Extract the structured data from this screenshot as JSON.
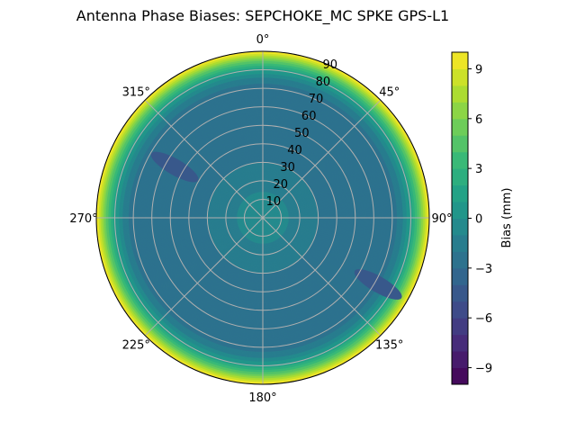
{
  "chart_data": {
    "type": "polar-contour",
    "title": "Antenna Phase Biases: SEPCHOKE_MC     SPKE GPS-L1",
    "angular_ticks": [
      "0°",
      "45°",
      "90°",
      "135°",
      "180°",
      "225°",
      "270°",
      "315°"
    ],
    "radial_ticks": [
      "10",
      "20",
      "30",
      "40",
      "50",
      "60",
      "70",
      "80",
      "90"
    ],
    "radial_range": [
      0,
      90
    ],
    "grid": true,
    "colormap": "viridis",
    "colorbar": {
      "label": "Bias (mm)",
      "range": [
        -10,
        10
      ],
      "level_step": 1,
      "ticks": [
        "−9",
        "−6",
        "−3",
        "0",
        "3",
        "6",
        "9"
      ],
      "tick_values": [
        -9,
        -6,
        -3,
        0,
        3,
        6,
        9
      ]
    },
    "radial_profile": {
      "zenith_deg": [
        0,
        10,
        20,
        30,
        40,
        50,
        60,
        70,
        75,
        80,
        85,
        90
      ],
      "bias_mm": [
        -0.5,
        -0.8,
        -1.3,
        -2.0,
        -2.8,
        -3.0,
        -3.0,
        -2.6,
        -1.5,
        1.0,
        5.0,
        10.0
      ]
    },
    "local_minima": [
      {
        "azimuth_deg": 300,
        "zenith_deg": 55,
        "bias_mm": -4.2
      },
      {
        "azimuth_deg": 120,
        "zenith_deg": 72,
        "bias_mm": -4.1
      }
    ]
  }
}
